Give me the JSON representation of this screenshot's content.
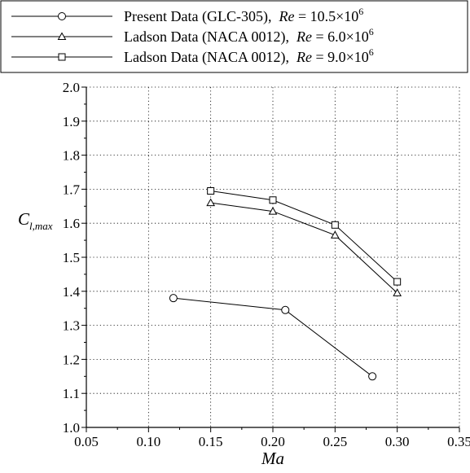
{
  "chart_data": {
    "type": "line",
    "xlabel": "Ma",
    "ylabel": "C_{l,max}",
    "xlim": [
      0.05,
      0.35
    ],
    "ylim": [
      1.0,
      2.0
    ],
    "x_ticks": [
      0.05,
      0.1,
      0.15,
      0.2,
      0.25,
      0.3,
      0.35
    ],
    "x_tick_labels": [
      "0.05",
      "0.10",
      "0.15",
      "0.20",
      "0.25",
      "0.30",
      "0.35"
    ],
    "y_ticks": [
      1.0,
      1.1,
      1.2,
      1.3,
      1.4,
      1.5,
      1.6,
      1.7,
      1.8,
      1.9,
      2.0
    ],
    "y_tick_labels": [
      "1.0",
      "1.1",
      "1.2",
      "1.3",
      "1.4",
      "1.5",
      "1.6",
      "1.7",
      "1.8",
      "1.9",
      "2.0"
    ],
    "grid": true,
    "legend_position": "top, outside plot",
    "series": [
      {
        "name": "Present Data (GLC-305),  Re = 10.5×10^6",
        "legend_prefix": "Present Data (GLC-305),",
        "legend_re_value": "10.5×10",
        "legend_exponent": "6",
        "marker": "circle",
        "x": [
          0.12,
          0.21,
          0.28
        ],
        "y": [
          1.38,
          1.345,
          1.15
        ]
      },
      {
        "name": "Ladson Data (NACA 0012),  Re = 6.0×10^6",
        "legend_prefix": "Ladson Data (NACA 0012),",
        "legend_re_value": "6.0×10",
        "legend_exponent": "6",
        "marker": "triangle",
        "x": [
          0.15,
          0.2,
          0.25,
          0.3
        ],
        "y": [
          1.66,
          1.635,
          1.565,
          1.395
        ]
      },
      {
        "name": "Ladson Data (NACA 0012),  Re = 9.0×10^6",
        "legend_prefix": "Ladson Data (NACA 0012),",
        "legend_re_value": "9.0×10",
        "legend_exponent": "6",
        "marker": "square",
        "x": [
          0.15,
          0.2,
          0.25,
          0.3
        ],
        "y": [
          1.695,
          1.668,
          1.595,
          1.428
        ]
      }
    ]
  }
}
